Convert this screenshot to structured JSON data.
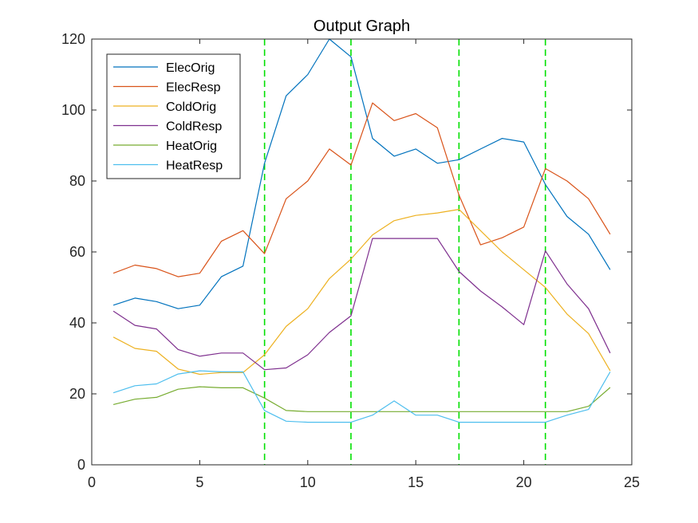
{
  "chart_data": {
    "type": "line",
    "title": "Output Graph",
    "xlabel": "",
    "ylabel": "",
    "xlim": [
      0,
      25
    ],
    "ylim": [
      0,
      120
    ],
    "xticks": [
      0,
      5,
      10,
      15,
      20,
      25
    ],
    "yticks": [
      0,
      20,
      40,
      60,
      80,
      100,
      120
    ],
    "grid": false,
    "legend_position": "top-left",
    "x": [
      1,
      2,
      3,
      4,
      5,
      6,
      7,
      8,
      9,
      10,
      11,
      12,
      13,
      14,
      15,
      16,
      17,
      18,
      19,
      20,
      21,
      22,
      23,
      24
    ],
    "series": [
      {
        "name": "ElecOrig",
        "color": "#0072BD",
        "values": [
          45,
          47,
          46,
          44,
          45,
          53,
          56,
          85,
          104,
          110,
          120,
          115,
          92,
          87,
          89,
          85,
          86,
          89,
          92,
          91,
          79,
          70,
          65,
          55
        ]
      },
      {
        "name": "ElecResp",
        "color": "#D95319",
        "values": [
          54,
          56.3,
          55.3,
          53,
          54,
          63,
          66,
          59.5,
          75,
          80,
          89,
          84.5,
          102,
          97,
          99,
          95,
          76,
          62,
          64,
          67,
          83.5,
          80,
          75,
          65
        ]
      },
      {
        "name": "ColdOrig",
        "color": "#EDB120",
        "values": [
          36,
          32.8,
          32,
          27,
          25.5,
          26,
          26,
          31,
          39,
          44,
          52.5,
          58,
          64.8,
          68.8,
          70.3,
          71,
          72,
          66,
          60,
          55,
          50,
          42.5,
          37,
          26.5
        ]
      },
      {
        "name": "ColdResp",
        "color": "#7E2F8E",
        "values": [
          43.3,
          39.3,
          38.3,
          32.5,
          30.6,
          31.5,
          31.5,
          26.8,
          27.3,
          31,
          37.3,
          42,
          63.8,
          63.8,
          63.8,
          63.8,
          54.5,
          49,
          44.5,
          39.5,
          60.3,
          51,
          44,
          31.5
        ]
      },
      {
        "name": "HeatOrig",
        "color": "#77AC30",
        "values": [
          17,
          18.5,
          19,
          21.3,
          22,
          21.7,
          21.7,
          18.8,
          15.3,
          15,
          15,
          15,
          15,
          15,
          15,
          15,
          15,
          15,
          15,
          15,
          15,
          15,
          16.5,
          21.8
        ]
      },
      {
        "name": "HeatResp",
        "color": "#4DBEEE",
        "values": [
          20.3,
          22.3,
          22.8,
          25.6,
          26.5,
          26.2,
          26.2,
          15.3,
          12.3,
          12,
          12,
          12,
          14,
          18,
          14,
          14,
          12,
          12,
          12,
          12,
          12,
          14,
          15.6,
          26.2
        ]
      }
    ],
    "vlines": {
      "x": [
        8,
        12,
        17,
        21
      ],
      "color": "#00E000",
      "style": "dashed"
    }
  }
}
